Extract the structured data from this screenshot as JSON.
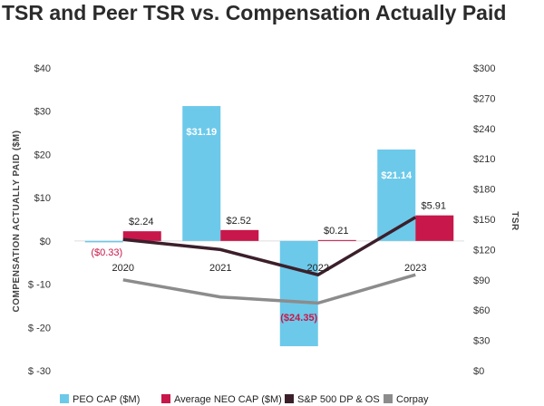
{
  "chart_data": {
    "type": "bar",
    "title": "TSR and Peer TSR vs. Compensation Actually Paid",
    "categories": [
      "2020",
      "2021",
      "2022",
      "2023"
    ],
    "ylabel": "COMPENSATION ACTUALLY PAID ($M)",
    "y2label": "TSR",
    "ylim": [
      -30,
      40
    ],
    "y2lim": [
      0,
      300
    ],
    "y_ticks": [
      -30,
      -20,
      -10,
      0,
      10,
      20,
      30,
      40
    ],
    "y_tick_labels": [
      "$ -30",
      "$ -20",
      "$ -10",
      "$0",
      "$10",
      "$20",
      "$30",
      "$40"
    ],
    "y2_ticks": [
      0,
      30,
      60,
      90,
      120,
      150,
      180,
      210,
      240,
      270,
      300
    ],
    "y2_tick_labels": [
      "$0",
      "$30",
      "$60",
      "$90",
      "$120",
      "$150",
      "$180",
      "$210",
      "$240",
      "$270",
      "$300"
    ],
    "series": [
      {
        "name": "PEO CAP ($M)",
        "kind": "bar",
        "axis": "left",
        "color": "#6cc9ea",
        "values": [
          -0.33,
          31.19,
          -24.35,
          21.14
        ],
        "labels": [
          "($0.33)",
          "$31.19",
          "($24.35)",
          "$21.14"
        ]
      },
      {
        "name": "Average NEO CAP ($M)",
        "kind": "bar",
        "axis": "left",
        "color": "#c8174a",
        "values": [
          2.24,
          2.52,
          0.21,
          5.91
        ],
        "labels": [
          "$2.24",
          "$2.52",
          "$0.21",
          "$5.91"
        ]
      },
      {
        "name": "S&P 500 DP & OS",
        "kind": "line",
        "axis": "right",
        "color": "#3b1f2b",
        "values": [
          130,
          120,
          95,
          152
        ]
      },
      {
        "name": "Corpay",
        "kind": "line",
        "axis": "right",
        "color": "#8c8c8c",
        "values": [
          90,
          73,
          67,
          95
        ]
      }
    ]
  }
}
